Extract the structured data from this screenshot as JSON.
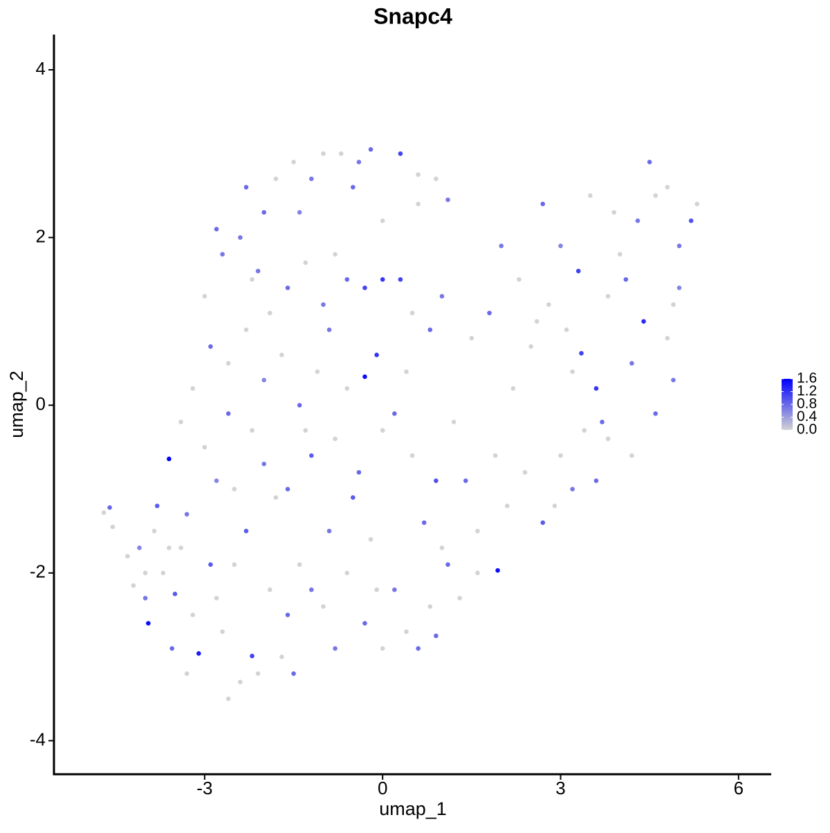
{
  "chart_data": {
    "type": "scatter",
    "title": "Snapc4",
    "x_label": "umap_1",
    "y_label": "umap_2",
    "xlim": [
      -5.54,
      6.55
    ],
    "ylim": [
      -4.4,
      4.42
    ],
    "xticks": [
      -3,
      0,
      3,
      6
    ],
    "yticks": [
      -4,
      -2,
      0,
      2,
      4
    ],
    "low_color": "#d3d3d3",
    "high_color": "#0000ff",
    "colorbar_lim": [
      0,
      1.6
    ],
    "colorbar_ticks": [
      {
        "value": 0,
        "label": "0.0"
      },
      0.4,
      0.8,
      1.2,
      1.6
    ],
    "x": [
      -4.7,
      -4.6,
      -4.55,
      -4.3,
      -4.1,
      -4.2,
      -4.0,
      -3.95,
      -3.85,
      -3.8,
      -3.7,
      -3.6,
      -3.55,
      -3.5,
      -3.4,
      -3.3,
      -3.2,
      -3.1,
      -3.0,
      -2.9,
      -2.8,
      -2.7,
      -2.6,
      -2.5,
      -2.4,
      -2.3,
      -2.2,
      -2.1,
      -2.0,
      -1.9,
      -1.8,
      -1.7,
      -1.6,
      -1.5,
      -1.4,
      -1.3,
      -1.2,
      -1.0,
      -0.9,
      -0.8,
      -0.6,
      -0.5,
      -0.3,
      -0.2,
      0.0,
      0.2,
      0.4,
      0.6,
      0.8,
      0.9,
      1.0,
      1.1,
      1.3,
      1.94,
      1.6,
      0.7,
      0.9,
      0.5,
      0.2,
      -0.3,
      -0.1,
      -0.6,
      -0.9,
      -1.1,
      -1.4,
      -1.7,
      -2.0,
      -2.3,
      -2.6,
      -2.9,
      -3.2,
      -3.4,
      -3.0,
      -2.7,
      -2.8,
      -2.4,
      -2.2,
      -2.0,
      -1.8,
      -1.5,
      -1.2,
      -1.0,
      -0.7,
      -0.4,
      -0.2,
      0.3,
      0.6,
      0.9,
      1.1,
      0.0,
      -0.3,
      -0.6,
      -0.8,
      -1.0,
      -1.3,
      -1.6,
      -1.9,
      -2.1,
      0.3,
      0.5,
      0.8,
      1.0,
      0.6,
      0.0,
      -0.5,
      -1.4,
      -2.3,
      -0.8,
      -1.6,
      -2.5,
      -3.6,
      -4.0,
      -3.3,
      -2.6,
      -2.8,
      -1.2,
      0.0,
      1.2,
      1.4,
      1.6,
      0.4,
      -0.4,
      -2.2,
      -0.1,
      1.5,
      1.8,
      2.0,
      2.3,
      2.5,
      2.7,
      2.8,
      3.0,
      3.2,
      3.3,
      3.35,
      3.6,
      3.4,
      3.7,
      3.8,
      4.0,
      4.2,
      4.4,
      4.5,
      4.6,
      4.8,
      5.0,
      5.2,
      5.3,
      5.0,
      4.8,
      4.9,
      4.6,
      4.2,
      3.8,
      3.6,
      3.2,
      2.9,
      2.7,
      3.0,
      2.4,
      2.2,
      1.9,
      2.1,
      3.9,
      4.3,
      3.5,
      4.9,
      4.1,
      2.6,
      3.1
    ],
    "y": [
      -1.28,
      -1.22,
      -1.45,
      -1.8,
      -1.7,
      -2.15,
      -2.3,
      -2.6,
      -1.5,
      -1.2,
      -2.0,
      -0.64,
      -2.9,
      -2.25,
      -1.7,
      -1.3,
      -2.5,
      -2.96,
      -0.5,
      -1.9,
      -0.9,
      -2.7,
      -0.1,
      -1.9,
      -3.3,
      -1.5,
      -2.99,
      -3.2,
      -0.7,
      -2.2,
      -1.1,
      -3.0,
      -2.5,
      -3.2,
      -1.9,
      -0.3,
      -0.6,
      -2.4,
      -1.5,
      -2.9,
      -2.0,
      -1.1,
      -2.6,
      -1.6,
      -2.9,
      -2.2,
      -2.7,
      -2.9,
      -2.4,
      -2.75,
      -1.7,
      -1.9,
      -2.3,
      -1.97,
      -1.5,
      -1.4,
      -0.9,
      -0.6,
      -0.1,
      0.34,
      0.6,
      0.2,
      0.9,
      0.4,
      0.0,
      0.6,
      0.3,
      0.9,
      0.5,
      0.7,
      0.2,
      -0.2,
      1.3,
      1.8,
      2.1,
      2.0,
      1.5,
      2.3,
      2.7,
      2.9,
      2.7,
      3.0,
      3.0,
      2.9,
      3.05,
      3.0,
      2.75,
      2.7,
      2.45,
      1.5,
      1.4,
      1.5,
      1.8,
      1.2,
      1.7,
      1.4,
      1.1,
      1.6,
      1.5,
      1.1,
      0.9,
      1.3,
      2.4,
      2.2,
      2.6,
      2.3,
      2.6,
      -0.4,
      -1.0,
      -1.0,
      -1.7,
      -2.0,
      -3.2,
      -3.5,
      -2.3,
      -2.2,
      -0.3,
      -0.2,
      -0.9,
      -2.0,
      0.4,
      -0.8,
      -0.3,
      -2.2,
      0.8,
      1.1,
      1.9,
      1.5,
      0.7,
      2.4,
      1.2,
      1.9,
      0.4,
      1.6,
      0.62,
      0.2,
      -0.3,
      -0.2,
      1.3,
      1.8,
      0.5,
      1.0,
      2.9,
      2.5,
      2.6,
      1.9,
      2.2,
      2.4,
      1.4,
      0.8,
      0.3,
      -0.1,
      -0.6,
      -0.4,
      -0.9,
      -1.0,
      -1.2,
      -1.4,
      -0.6,
      -0.8,
      0.2,
      -0.6,
      -1.2,
      2.3,
      2.2,
      2.5,
      1.2,
      1.5,
      1.0,
      0.9
    ],
    "expression": [
      0,
      0.8,
      0,
      0,
      0.6,
      0,
      0.7,
      1.5,
      0,
      0.9,
      0,
      1.6,
      0.8,
      0.9,
      0,
      0.7,
      0,
      1.4,
      0,
      0.9,
      0.6,
      0,
      0.8,
      0,
      0,
      0.9,
      1.1,
      0,
      0.7,
      0,
      0,
      0,
      0.8,
      0.8,
      0,
      0,
      0.9,
      0,
      0.7,
      0.7,
      0,
      0.9,
      0.8,
      0,
      0,
      0.7,
      0,
      0.8,
      0,
      0.8,
      0,
      0.8,
      0,
      1.5,
      0,
      0.8,
      1.0,
      0,
      0.8,
      1.5,
      1.2,
      0,
      0.7,
      0,
      0.8,
      0,
      0.6,
      0,
      0,
      0.8,
      0,
      0,
      0,
      0.7,
      0.8,
      0.7,
      0,
      0.8,
      0,
      0,
      0.7,
      0,
      0,
      0.7,
      0.8,
      1.1,
      0,
      0,
      0.7,
      1.2,
      1.1,
      0.8,
      0,
      0.7,
      0,
      0.8,
      0,
      0.7,
      1.1,
      0,
      0.8,
      0.7,
      0,
      0,
      0.8,
      0.6,
      0.8,
      0,
      0.8,
      0,
      0,
      0,
      0,
      0,
      0,
      0.7,
      0,
      0,
      0.8,
      0,
      0,
      0.8,
      0,
      0,
      0,
      0.8,
      0.7,
      0,
      0,
      0.8,
      0,
      0.6,
      0,
      1.1,
      1.1,
      1.2,
      0,
      0.8,
      0,
      0,
      0.7,
      1.3,
      0.8,
      0,
      0,
      0.7,
      1.0,
      0,
      0.6,
      0,
      0.7,
      0.8,
      0,
      0,
      0.8,
      0.7,
      0,
      0.9,
      0,
      0,
      0,
      0,
      0,
      0,
      0.7,
      0,
      0,
      0.8,
      0,
      0
    ]
  }
}
